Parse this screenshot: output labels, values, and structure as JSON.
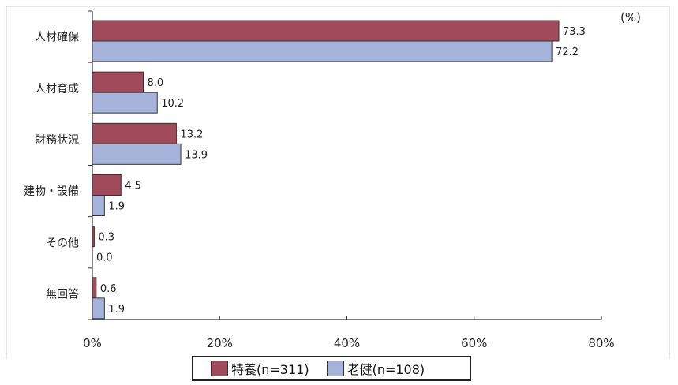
{
  "chart_data": {
    "type": "bar",
    "orientation": "horizontal",
    "categories": [
      "人材確保",
      "人材育成",
      "財務状況",
      "建物・設備",
      "その他",
      "無回答"
    ],
    "series": [
      {
        "name": "特養(n=311)",
        "values": [
          73.3,
          8.0,
          13.2,
          4.5,
          0.3,
          0.6
        ],
        "color": "#a04a5c"
      },
      {
        "name": "老健(n=108)",
        "values": [
          72.2,
          10.2,
          13.9,
          1.9,
          0.0,
          1.9
        ],
        "color": "#a6b4dc"
      }
    ],
    "value_labels": [
      [
        "73.3",
        "8.0",
        "13.2",
        "4.5",
        "0.3",
        "0.6"
      ],
      [
        "72.2",
        "10.2",
        "13.9",
        "1.9",
        "0.0",
        "1.9"
      ]
    ],
    "xlim": [
      0,
      80
    ],
    "xticks": [
      "0%",
      "20%",
      "40%",
      "60%",
      "80%"
    ],
    "unit_label": "(%)",
    "legend_position": "bottom",
    "grid": false
  }
}
